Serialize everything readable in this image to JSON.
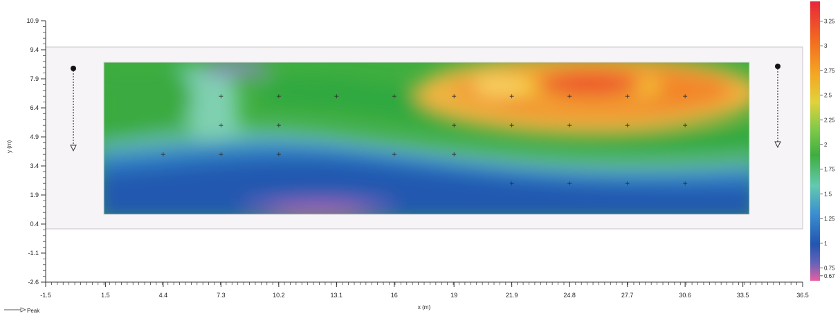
{
  "chart_data": {
    "type": "heatmap",
    "title": "",
    "xlabel": "x (m)",
    "ylabel": "y (m)",
    "xlim": [
      -1.5,
      36.5
    ],
    "ylim": [
      -2.6,
      10.9
    ],
    "x_ticks": [
      "-1.5",
      "1.5",
      "4.4",
      "7.3",
      "10.2",
      "13.1",
      "16",
      "19",
      "21.9",
      "24.8",
      "27.7",
      "30.6",
      "33.5",
      "36.5"
    ],
    "y_ticks": [
      "10.9",
      "9.4",
      "7.9",
      "6.4",
      "4.9",
      "3.4",
      "1.9",
      "0.4",
      "-1.1",
      "-2.6"
    ],
    "colorbar": {
      "labels": [
        "3.25",
        "3",
        "2.75",
        "2.5",
        "2.25",
        "2",
        "1.75",
        "1.5",
        "1.25",
        "1",
        "0.75",
        "0.67"
      ],
      "values": [
        3.25,
        3,
        2.75,
        2.5,
        2.25,
        2,
        1.75,
        1.5,
        1.25,
        1,
        0.75,
        0.67
      ],
      "colors": [
        "#e8273a",
        "#f26b1f",
        "#f5a623",
        "#f0d23b",
        "#9bd14a",
        "#3fae3f",
        "#27a650",
        "#63c9b0",
        "#3a8fd0",
        "#2355b0",
        "#6a63b8",
        "#e65fa0"
      ]
    },
    "section": {
      "x_range": [
        1.5,
        33.5
      ],
      "y_range": [
        0.9,
        8.2
      ]
    },
    "measurement_rows_y": [
      7.0,
      5.5,
      4.0,
      2.5
    ],
    "measurement_points": [
      {
        "x": 7.3,
        "y": 7.0
      },
      {
        "x": 10.2,
        "y": 7.0
      },
      {
        "x": 13.1,
        "y": 7.0
      },
      {
        "x": 16,
        "y": 7.0
      },
      {
        "x": 19,
        "y": 7.0
      },
      {
        "x": 21.9,
        "y": 7.0
      },
      {
        "x": 24.8,
        "y": 7.0
      },
      {
        "x": 27.7,
        "y": 7.0
      },
      {
        "x": 30.6,
        "y": 7.0
      },
      {
        "x": 7.3,
        "y": 5.5
      },
      {
        "x": 10.2,
        "y": 5.5
      },
      {
        "x": 19,
        "y": 5.5
      },
      {
        "x": 21.9,
        "y": 5.5
      },
      {
        "x": 24.8,
        "y": 5.5
      },
      {
        "x": 27.7,
        "y": 5.5
      },
      {
        "x": 30.6,
        "y": 5.5
      },
      {
        "x": 4.4,
        "y": 4.0
      },
      {
        "x": 7.3,
        "y": 4.0
      },
      {
        "x": 10.2,
        "y": 4.0
      },
      {
        "x": 16,
        "y": 4.0
      },
      {
        "x": 19,
        "y": 4.0
      },
      {
        "x": 21.9,
        "y": 2.5
      },
      {
        "x": 24.8,
        "y": 2.5
      },
      {
        "x": 27.7,
        "y": 2.5
      },
      {
        "x": 30.6,
        "y": 2.5
      }
    ],
    "legend": {
      "label": "Peak",
      "placement": "bottom-left"
    },
    "grid": false
  }
}
